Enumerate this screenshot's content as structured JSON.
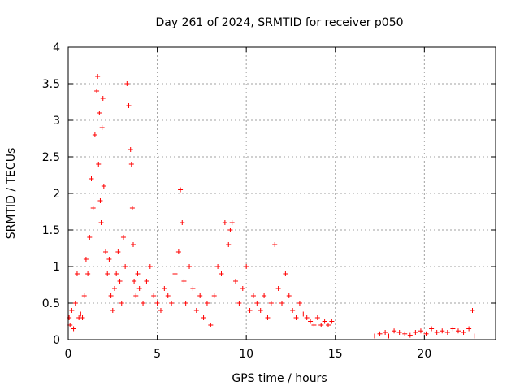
{
  "chart_data": {
    "type": "scatter",
    "title": "Day 261 of 2024, SRMTID for receiver p050",
    "xlabel": "GPS time / hours",
    "ylabel": "SRMTID / TECUs",
    "xlim": [
      0,
      24
    ],
    "ylim": [
      0,
      4
    ],
    "xticks": [
      0,
      5,
      10,
      15,
      20
    ],
    "xtick_labels": [
      "0",
      "5",
      "10",
      "15",
      "20"
    ],
    "yticks": [
      0,
      0.5,
      1,
      1.5,
      2,
      2.5,
      3,
      3.5,
      4
    ],
    "ytick_labels": [
      "0",
      "0.5",
      "1",
      "1.5",
      "2",
      "2.5",
      "3",
      "3.5",
      "4"
    ],
    "grid": true,
    "marker": "+",
    "series": [
      {
        "name": "SRMTID",
        "color": "#ff0000",
        "x": [
          0.05,
          0.1,
          0.2,
          0.3,
          0.4,
          0.5,
          0.6,
          0.7,
          0.8,
          0.9,
          1.0,
          1.1,
          1.2,
          1.3,
          1.4,
          1.5,
          1.6,
          1.65,
          1.7,
          1.75,
          1.8,
          1.85,
          1.9,
          1.95,
          2.0,
          2.1,
          2.2,
          2.3,
          2.4,
          2.5,
          2.6,
          2.7,
          2.8,
          2.9,
          3.0,
          3.1,
          3.2,
          3.3,
          3.4,
          3.5,
          3.55,
          3.6,
          3.65,
          3.7,
          3.8,
          3.9,
          4.0,
          4.2,
          4.4,
          4.6,
          4.8,
          5.0,
          5.2,
          5.4,
          5.6,
          5.8,
          6.0,
          6.2,
          6.3,
          6.4,
          6.5,
          6.6,
          6.8,
          7.0,
          7.2,
          7.4,
          7.6,
          7.8,
          8.0,
          8.2,
          8.4,
          8.6,
          8.8,
          9.0,
          9.1,
          9.2,
          9.4,
          9.6,
          9.8,
          10.0,
          10.2,
          10.4,
          10.6,
          10.8,
          11.0,
          11.2,
          11.4,
          11.6,
          11.8,
          12.0,
          12.2,
          12.4,
          12.6,
          12.8,
          13.0,
          13.2,
          13.4,
          13.6,
          13.8,
          14.0,
          14.2,
          14.4,
          14.6,
          14.8,
          17.2,
          17.5,
          17.8,
          18.0,
          18.3,
          18.6,
          18.9,
          19.2,
          19.5,
          19.8,
          20.1,
          20.4,
          20.7,
          21.0,
          21.3,
          21.6,
          21.9,
          22.2,
          22.5,
          22.7,
          22.8
        ],
        "y": [
          0.3,
          0.2,
          0.4,
          0.15,
          0.5,
          0.9,
          0.3,
          0.35,
          0.3,
          0.6,
          1.1,
          0.9,
          1.4,
          2.2,
          1.8,
          2.8,
          3.4,
          3.6,
          2.4,
          3.1,
          1.9,
          1.6,
          2.9,
          3.3,
          2.1,
          1.2,
          0.9,
          1.1,
          0.6,
          0.4,
          0.7,
          0.9,
          1.2,
          0.8,
          0.5,
          1.4,
          1.0,
          3.5,
          3.2,
          2.6,
          2.4,
          1.8,
          1.3,
          0.8,
          0.6,
          0.9,
          0.7,
          0.5,
          0.8,
          1.0,
          0.6,
          0.5,
          0.4,
          0.7,
          0.6,
          0.5,
          0.9,
          1.2,
          2.05,
          1.6,
          0.8,
          0.5,
          1.0,
          0.7,
          0.4,
          0.6,
          0.3,
          0.5,
          0.2,
          0.6,
          1.0,
          0.9,
          1.6,
          1.3,
          1.5,
          1.6,
          0.8,
          0.5,
          0.7,
          1.0,
          0.4,
          0.6,
          0.5,
          0.4,
          0.6,
          0.3,
          0.5,
          1.3,
          0.7,
          0.5,
          0.9,
          0.6,
          0.4,
          0.3,
          0.5,
          0.35,
          0.3,
          0.25,
          0.2,
          0.3,
          0.2,
          0.25,
          0.2,
          0.25,
          0.05,
          0.08,
          0.1,
          0.05,
          0.12,
          0.1,
          0.08,
          0.06,
          0.1,
          0.12,
          0.08,
          0.15,
          0.1,
          0.12,
          0.1,
          0.15,
          0.12,
          0.1,
          0.15,
          0.4,
          0.05
        ]
      }
    ]
  }
}
